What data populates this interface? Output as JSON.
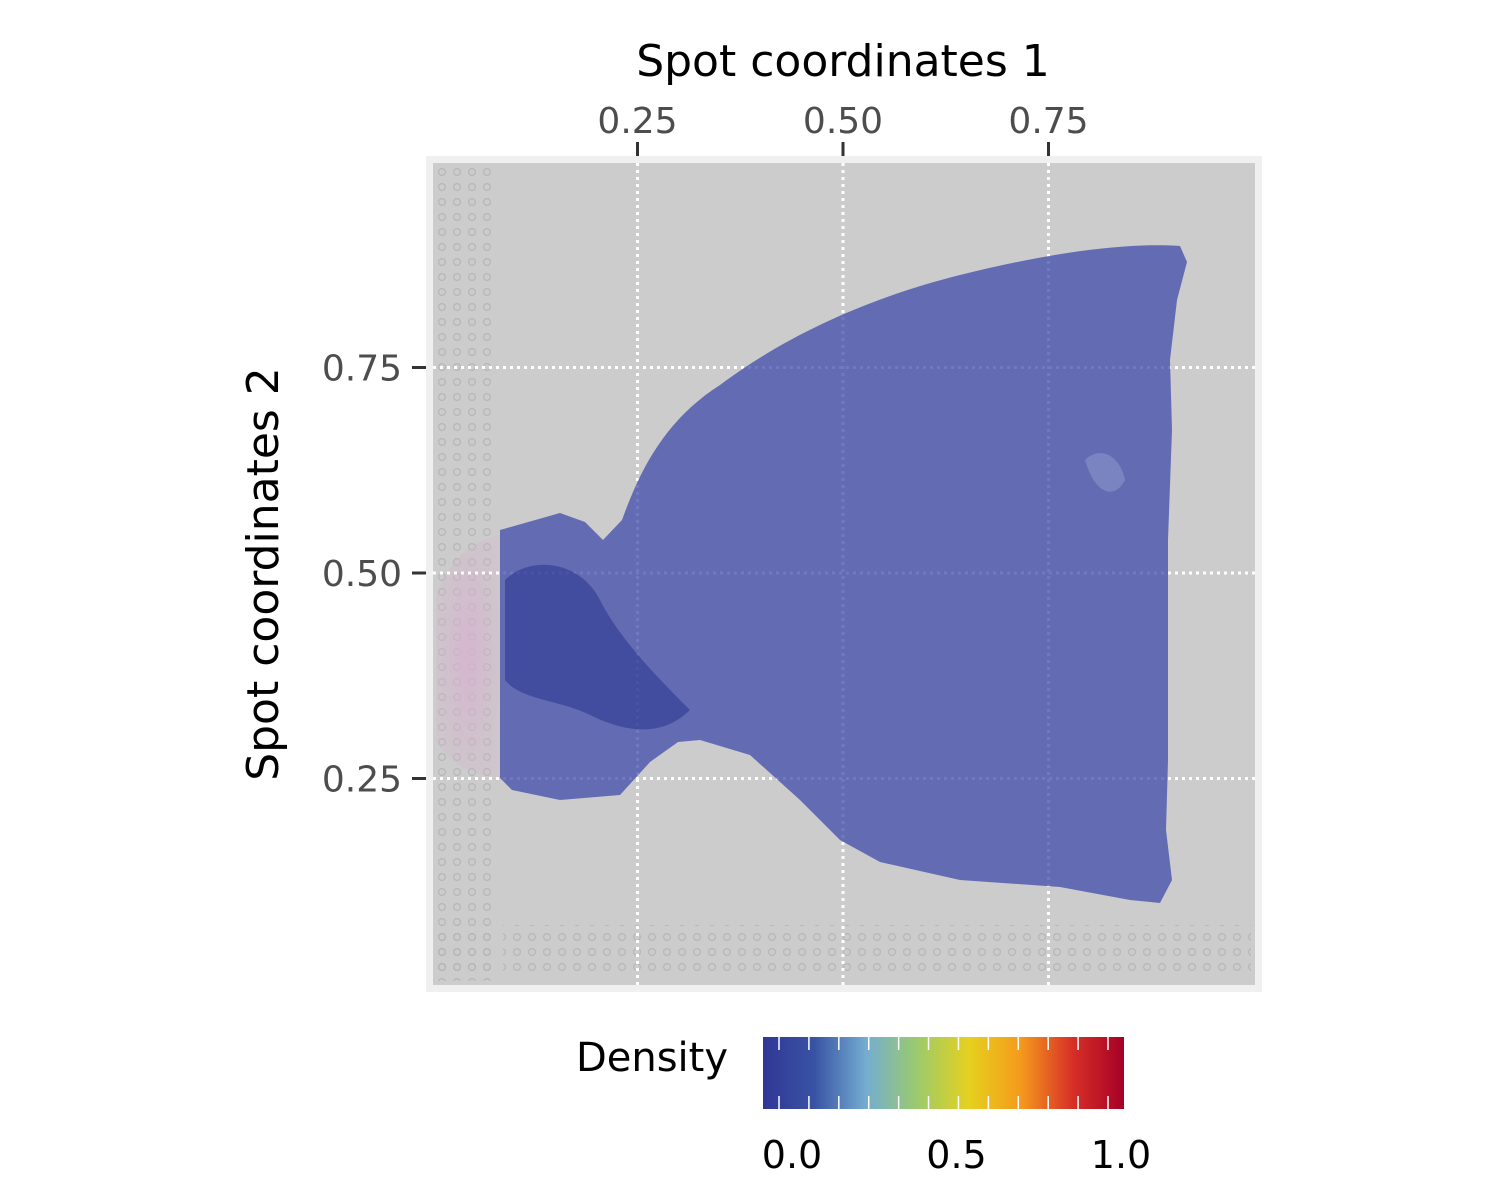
{
  "chart_data": {
    "type": "heatmap",
    "title": "",
    "xlabel": "Spot coordinates 1",
    "ylabel": "Spot coordinates 2",
    "x_axis_position": "top",
    "xlim": [
      0.0,
      1.0
    ],
    "ylim": [
      0.0,
      1.0
    ],
    "x_ticks": [
      0.25,
      0.5,
      0.75
    ],
    "x_tick_labels": [
      "0.25",
      "0.50",
      "0.75"
    ],
    "y_ticks": [
      0.25,
      0.5,
      0.75
    ],
    "y_tick_labels": [
      "0.25",
      "0.50",
      "0.75"
    ],
    "grid": true,
    "background_image": "H&E tissue section image with spot array",
    "density_overlay": {
      "value": 0.0,
      "color": "#3a47a8",
      "note_region": "tissue area"
    },
    "legend": {
      "title": "Density",
      "position": "bottom",
      "range": [
        0.0,
        1.0
      ],
      "ticks": [
        0.0,
        0.5,
        1.0
      ],
      "tick_labels": [
        "0.0",
        "0.5",
        "1.0"
      ],
      "colors": [
        "#313695",
        "#3953a4",
        "#74add1",
        "#9ccb6b",
        "#e6d11e",
        "#f59a1c",
        "#d73027",
        "#a50026"
      ]
    }
  }
}
